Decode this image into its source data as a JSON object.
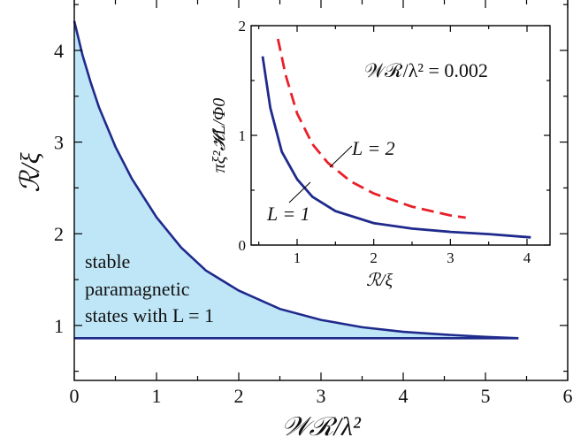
{
  "chart_data": [
    {
      "type": "area",
      "xlabel": "𝒲ℛ/λ²",
      "ylabel": "ℛ/ξ",
      "xlim": [
        0,
        6
      ],
      "ylim": [
        0.4,
        4.55
      ],
      "xticks": [
        "0",
        "1",
        "2",
        "3",
        "4",
        "5",
        "6"
      ],
      "yticks": [
        "1",
        "2",
        "3",
        "4"
      ],
      "series": [
        {
          "name": "",
          "role": "upper-boundary",
          "color": "#1f2a8c",
          "x": [
            0,
            0.1,
            0.2,
            0.3,
            0.5,
            0.7,
            1.0,
            1.3,
            1.6,
            2.0,
            2.5,
            3.0,
            3.5,
            4.0,
            4.5,
            5.0,
            5.4
          ],
          "y": [
            4.32,
            3.95,
            3.65,
            3.38,
            2.95,
            2.6,
            2.18,
            1.85,
            1.6,
            1.38,
            1.18,
            1.06,
            0.98,
            0.93,
            0.9,
            0.875,
            0.86
          ]
        },
        {
          "name": "",
          "role": "lower-boundary",
          "color": "#1f2a8c",
          "x": [
            0,
            5.4
          ],
          "y": [
            0.86,
            0.86
          ]
        }
      ],
      "fill_color": "#bfe6f7",
      "annotation": [
        "stable",
        "paramagnetic",
        "states with L = 1"
      ]
    },
    {
      "type": "line",
      "xlabel": "ℛ/ξ",
      "ylabel": "πξ²𝓗L/Φ0",
      "xlim": [
        0.4,
        4.3
      ],
      "ylim": [
        0,
        2
      ],
      "xticks": [
        "1",
        "2",
        "3",
        "4"
      ],
      "yticks": [
        "0",
        "1",
        "2"
      ],
      "annotation": "𝒲ℛ/λ² = 0.002",
      "series": [
        {
          "name": "L = 1",
          "color": "#1f2a8c",
          "dash": "solid",
          "x": [
            0.55,
            0.65,
            0.8,
            1.0,
            1.2,
            1.5,
            2.0,
            2.5,
            3.0,
            3.5,
            4.05
          ],
          "y": [
            1.72,
            1.25,
            0.85,
            0.6,
            0.44,
            0.31,
            0.2,
            0.15,
            0.12,
            0.1,
            0.07
          ]
        },
        {
          "name": "L = 2",
          "color": "#e8202a",
          "dash": "dashed",
          "x": [
            0.75,
            0.85,
            1.0,
            1.2,
            1.4,
            1.7,
            2.0,
            2.5,
            3.0,
            3.2
          ],
          "y": [
            1.88,
            1.55,
            1.2,
            0.92,
            0.75,
            0.58,
            0.47,
            0.35,
            0.27,
            0.25
          ]
        }
      ],
      "labels": [
        "L = 1",
        "L = 2"
      ]
    }
  ]
}
